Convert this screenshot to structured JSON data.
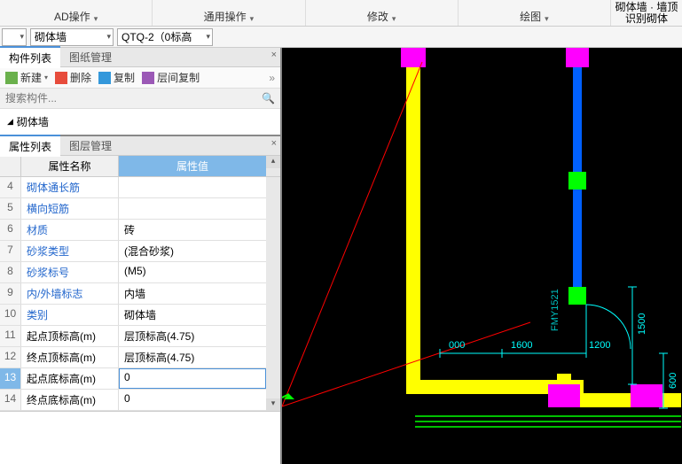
{
  "ribbon": {
    "sections": [
      "AD操作",
      "通用操作",
      "修改",
      "绘图"
    ],
    "rightLines": [
      "砌体墙 · 墙顶",
      "识别砌体"
    ]
  },
  "combos": {
    "c1": "",
    "c2": "砌体墙",
    "c3": "QTQ-2（0标高"
  },
  "leftTop": {
    "tabs": [
      "构件列表",
      "图纸管理"
    ],
    "tools": {
      "new": "新建",
      "delete": "删除",
      "copy": "复制",
      "copyBetween": "层间复制"
    },
    "searchPlaceholder": "搜索构件...",
    "treeItem": "砌体墙"
  },
  "propPanel": {
    "tabs": [
      "属性列表",
      "图层管理"
    ],
    "headers": {
      "name": "属性名称",
      "value": "属性值"
    },
    "rows": [
      {
        "n": "4",
        "name": "砌体通长筋",
        "val": "",
        "link": true
      },
      {
        "n": "5",
        "name": "横向短筋",
        "val": "",
        "link": true
      },
      {
        "n": "6",
        "name": "材质",
        "val": "砖",
        "link": true
      },
      {
        "n": "7",
        "name": "砂浆类型",
        "val": "(混合砂浆)",
        "link": true
      },
      {
        "n": "8",
        "name": "砂浆标号",
        "val": "(M5)",
        "link": true
      },
      {
        "n": "9",
        "name": "内/外墙标志",
        "val": "内墙",
        "link": true
      },
      {
        "n": "10",
        "name": "类别",
        "val": "砌体墙",
        "link": true
      },
      {
        "n": "11",
        "name": "起点顶标高(m)",
        "val": "层顶标高(4.75)",
        "link": false
      },
      {
        "n": "12",
        "name": "终点顶标高(m)",
        "val": "层顶标高(4.75)",
        "link": false
      },
      {
        "n": "13",
        "name": "起点底标高(m)",
        "val": "0",
        "link": false,
        "selected": true
      },
      {
        "n": "14",
        "name": "终点底标高(m)",
        "val": "0",
        "link": false
      }
    ]
  },
  "canvas": {
    "dims": {
      "d1": "000",
      "d2": "1600",
      "d3": "1200",
      "d4": "1500",
      "d5": "600"
    },
    "label": "FMY1521",
    "colors": {
      "bg": "#000000",
      "yellow": "#ffff00",
      "blue": "#0060ff",
      "magenta": "#ff00ff",
      "green": "#00ff00",
      "cyan": "#00ffff",
      "red": "#ff0000",
      "darkgreen": "#00a000"
    }
  }
}
